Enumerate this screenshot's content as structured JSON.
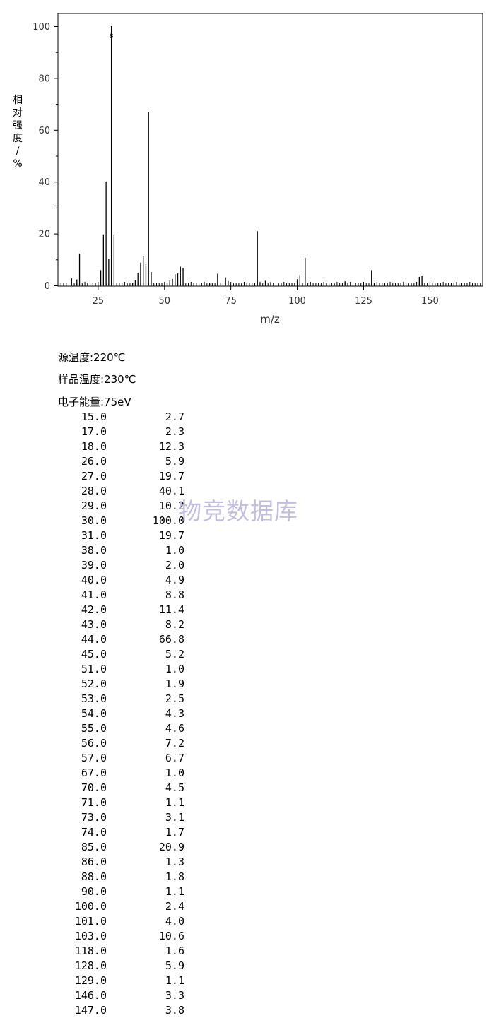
{
  "chart_data": {
    "type": "bar",
    "xlabel": "m/z",
    "ylabel": "相对强度/%",
    "xlim": [
      10,
      170
    ],
    "ylim": [
      0,
      100
    ],
    "x_ticks": [
      25,
      50,
      75,
      100,
      125,
      150
    ],
    "y_ticks": [
      0,
      20,
      40,
      60,
      80,
      100
    ],
    "base_peak_marker": "8",
    "grid": false,
    "x": [
      15,
      17,
      18,
      26,
      27,
      28,
      29,
      30,
      31,
      38,
      39,
      40,
      41,
      42,
      43,
      44,
      45,
      51,
      52,
      53,
      54,
      55,
      56,
      57,
      67,
      70,
      71,
      73,
      74,
      85,
      86,
      88,
      90,
      100,
      101,
      103,
      118,
      128,
      129,
      146,
      147
    ],
    "values": [
      2.7,
      2.3,
      12.3,
      5.9,
      19.7,
      40.1,
      10.2,
      100.0,
      19.7,
      1.0,
      2.0,
      4.9,
      8.8,
      11.4,
      8.2,
      66.8,
      5.2,
      1.0,
      1.9,
      2.5,
      4.3,
      4.6,
      7.2,
      6.7,
      1.0,
      4.5,
      1.1,
      3.1,
      1.7,
      20.9,
      1.3,
      1.8,
      1.1,
      2.4,
      4.0,
      10.6,
      1.6,
      5.9,
      1.1,
      3.3,
      3.8
    ]
  },
  "conditions": {
    "source_temp": "源温度:220℃",
    "sample_temp": "样品温度:230℃",
    "electron_energy": "电子能量:75eV"
  },
  "peaks": [
    {
      "mz": "15.0",
      "ri": "2.7"
    },
    {
      "mz": "17.0",
      "ri": "2.3"
    },
    {
      "mz": "18.0",
      "ri": "12.3"
    },
    {
      "mz": "26.0",
      "ri": "5.9"
    },
    {
      "mz": "27.0",
      "ri": "19.7"
    },
    {
      "mz": "28.0",
      "ri": "40.1"
    },
    {
      "mz": "29.0",
      "ri": "10.2"
    },
    {
      "mz": "30.0",
      "ri": "100.0"
    },
    {
      "mz": "31.0",
      "ri": "19.7"
    },
    {
      "mz": "38.0",
      "ri": "1.0"
    },
    {
      "mz": "39.0",
      "ri": "2.0"
    },
    {
      "mz": "40.0",
      "ri": "4.9"
    },
    {
      "mz": "41.0",
      "ri": "8.8"
    },
    {
      "mz": "42.0",
      "ri": "11.4"
    },
    {
      "mz": "43.0",
      "ri": "8.2"
    },
    {
      "mz": "44.0",
      "ri": "66.8"
    },
    {
      "mz": "45.0",
      "ri": "5.2"
    },
    {
      "mz": "51.0",
      "ri": "1.0"
    },
    {
      "mz": "52.0",
      "ri": "1.9"
    },
    {
      "mz": "53.0",
      "ri": "2.5"
    },
    {
      "mz": "54.0",
      "ri": "4.3"
    },
    {
      "mz": "55.0",
      "ri": "4.6"
    },
    {
      "mz": "56.0",
      "ri": "7.2"
    },
    {
      "mz": "57.0",
      "ri": "6.7"
    },
    {
      "mz": "67.0",
      "ri": "1.0"
    },
    {
      "mz": "70.0",
      "ri": "4.5"
    },
    {
      "mz": "71.0",
      "ri": "1.1"
    },
    {
      "mz": "73.0",
      "ri": "3.1"
    },
    {
      "mz": "74.0",
      "ri": "1.7"
    },
    {
      "mz": "85.0",
      "ri": "20.9"
    },
    {
      "mz": "86.0",
      "ri": "1.3"
    },
    {
      "mz": "88.0",
      "ri": "1.8"
    },
    {
      "mz": "90.0",
      "ri": "1.1"
    },
    {
      "mz": "100.0",
      "ri": "2.4"
    },
    {
      "mz": "101.0",
      "ri": "4.0"
    },
    {
      "mz": "103.0",
      "ri": "10.6"
    },
    {
      "mz": "118.0",
      "ri": "1.6"
    },
    {
      "mz": "128.0",
      "ri": "5.9"
    },
    {
      "mz": "129.0",
      "ri": "1.1"
    },
    {
      "mz": "146.0",
      "ri": "3.3"
    },
    {
      "mz": "147.0",
      "ri": "3.8"
    }
  ],
  "watermark": "物竞数据库"
}
